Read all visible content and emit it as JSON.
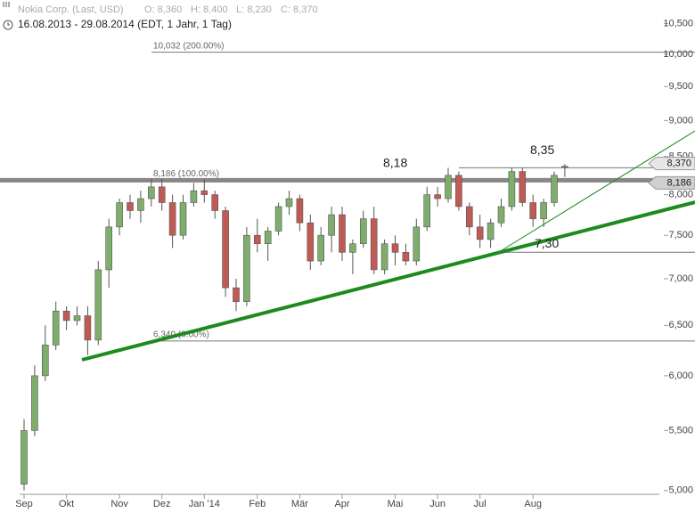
{
  "chart_data": {
    "type": "candlestick",
    "title": "Nokia Corp. (Last, USD)",
    "quote": [
      "O: 8,360",
      "H: 8,400",
      "L: 8,230",
      "C: 8,370"
    ],
    "subtitle": "16.08.2013 - 29.08.2014 (EDT, 1 Jahr, 1 Tag)",
    "log_scale": true,
    "up_color": "#7fae6c",
    "down_color": "#c05a55",
    "level_color": "#777777",
    "categories": [
      "Sep",
      null,
      null,
      null,
      "Okt",
      null,
      null,
      null,
      null,
      "Nov",
      null,
      null,
      null,
      "Dez",
      null,
      null,
      null,
      "Jan '14",
      null,
      null,
      null,
      null,
      "Feb",
      null,
      null,
      null,
      "Mär",
      null,
      null,
      null,
      "Apr",
      null,
      null,
      null,
      null,
      "Mai",
      null,
      null,
      null,
      "Jun",
      null,
      null,
      null,
      "Jul",
      null,
      null,
      null,
      null,
      "Aug",
      null,
      null,
      null
    ],
    "open": [
      5.05,
      5.5,
      6.0,
      6.3,
      6.65,
      6.55,
      6.6,
      6.35,
      7.1,
      7.6,
      7.9,
      7.8,
      7.95,
      8.1,
      7.9,
      7.5,
      7.9,
      8.05,
      8.0,
      7.8,
      6.9,
      6.75,
      7.5,
      7.4,
      7.55,
      7.85,
      7.95,
      7.65,
      7.2,
      7.5,
      7.75,
      7.3,
      7.4,
      7.7,
      7.1,
      7.4,
      7.3,
      7.2,
      7.6,
      8.0,
      7.95,
      8.25,
      7.85,
      7.6,
      7.45,
      7.65,
      7.85,
      8.3,
      7.9,
      7.7,
      7.9,
      8.36
    ],
    "high": [
      5.6,
      6.1,
      6.5,
      6.75,
      6.7,
      6.7,
      6.7,
      7.2,
      7.7,
      7.95,
      8.0,
      8.05,
      8.2,
      8.2,
      8.0,
      8.0,
      8.15,
      8.2,
      8.05,
      7.85,
      7.0,
      7.6,
      7.7,
      7.6,
      7.9,
      8.05,
      8.0,
      7.75,
      7.6,
      7.85,
      7.85,
      7.45,
      7.8,
      7.85,
      7.45,
      7.5,
      7.4,
      7.7,
      8.1,
      8.1,
      8.35,
      8.3,
      7.9,
      7.75,
      7.7,
      7.95,
      8.35,
      8.35,
      8.0,
      7.95,
      8.3,
      8.4
    ],
    "low": [
      5.0,
      5.45,
      5.95,
      6.25,
      6.45,
      6.5,
      6.2,
      6.3,
      6.9,
      7.5,
      7.7,
      7.65,
      7.85,
      7.8,
      7.35,
      7.45,
      7.85,
      7.9,
      7.7,
      6.8,
      6.65,
      6.7,
      7.3,
      7.2,
      7.5,
      7.75,
      7.55,
      7.1,
      7.15,
      7.3,
      7.2,
      7.05,
      7.35,
      7.05,
      7.05,
      7.15,
      7.15,
      7.15,
      7.55,
      7.85,
      7.9,
      7.8,
      7.5,
      7.35,
      7.35,
      7.6,
      7.8,
      7.85,
      7.6,
      7.6,
      7.85,
      8.23
    ],
    "close": [
      5.5,
      6.0,
      6.3,
      6.65,
      6.55,
      6.6,
      6.35,
      7.1,
      7.6,
      7.9,
      7.8,
      7.95,
      8.1,
      7.9,
      7.5,
      7.9,
      8.05,
      8.0,
      7.8,
      6.9,
      6.75,
      7.5,
      7.4,
      7.55,
      7.85,
      7.95,
      7.65,
      7.2,
      7.5,
      7.75,
      7.3,
      7.4,
      7.7,
      7.1,
      7.4,
      7.3,
      7.2,
      7.6,
      8.0,
      7.95,
      8.25,
      7.85,
      7.6,
      7.45,
      7.65,
      7.85,
      8.3,
      7.9,
      7.7,
      7.9,
      8.25,
      8.37
    ],
    "ylim": [
      4.9,
      10.9
    ],
    "yticks": [
      {
        "value": 5,
        "label": "5,000"
      },
      {
        "value": 5.5,
        "label": "5,500"
      },
      {
        "value": 6,
        "label": "6,000"
      },
      {
        "value": 6.5,
        "label": "6,500"
      },
      {
        "value": 7,
        "label": "7,000"
      },
      {
        "value": 7.5,
        "label": "7,500"
      },
      {
        "value": 8,
        "label": "8,000"
      },
      {
        "value": 8.5,
        "label": "8,500"
      },
      {
        "value": 9,
        "label": "9,000"
      },
      {
        "value": 9.5,
        "label": "9,500"
      },
      {
        "value": 10,
        "label": "10,000"
      },
      {
        "value": 10.5,
        "label": "10,500"
      }
    ],
    "retracements": [
      {
        "value": 10.032,
        "label": "10,032 (200.00%)"
      },
      {
        "value": 8.186,
        "label": "8,186 (100.00%)"
      },
      {
        "value": 6.34,
        "label": "6,340 (0.00%)"
      }
    ],
    "annotations": [
      {
        "value": 8.18,
        "label": "8,18"
      },
      {
        "value": 8.35,
        "label": "8,35"
      },
      {
        "value": 7.3,
        "label": "7,30"
      }
    ],
    "price_tags": [
      {
        "value": 8.37,
        "label": "8,370"
      },
      {
        "value": 8.186,
        "label": "8,186"
      }
    ]
  }
}
